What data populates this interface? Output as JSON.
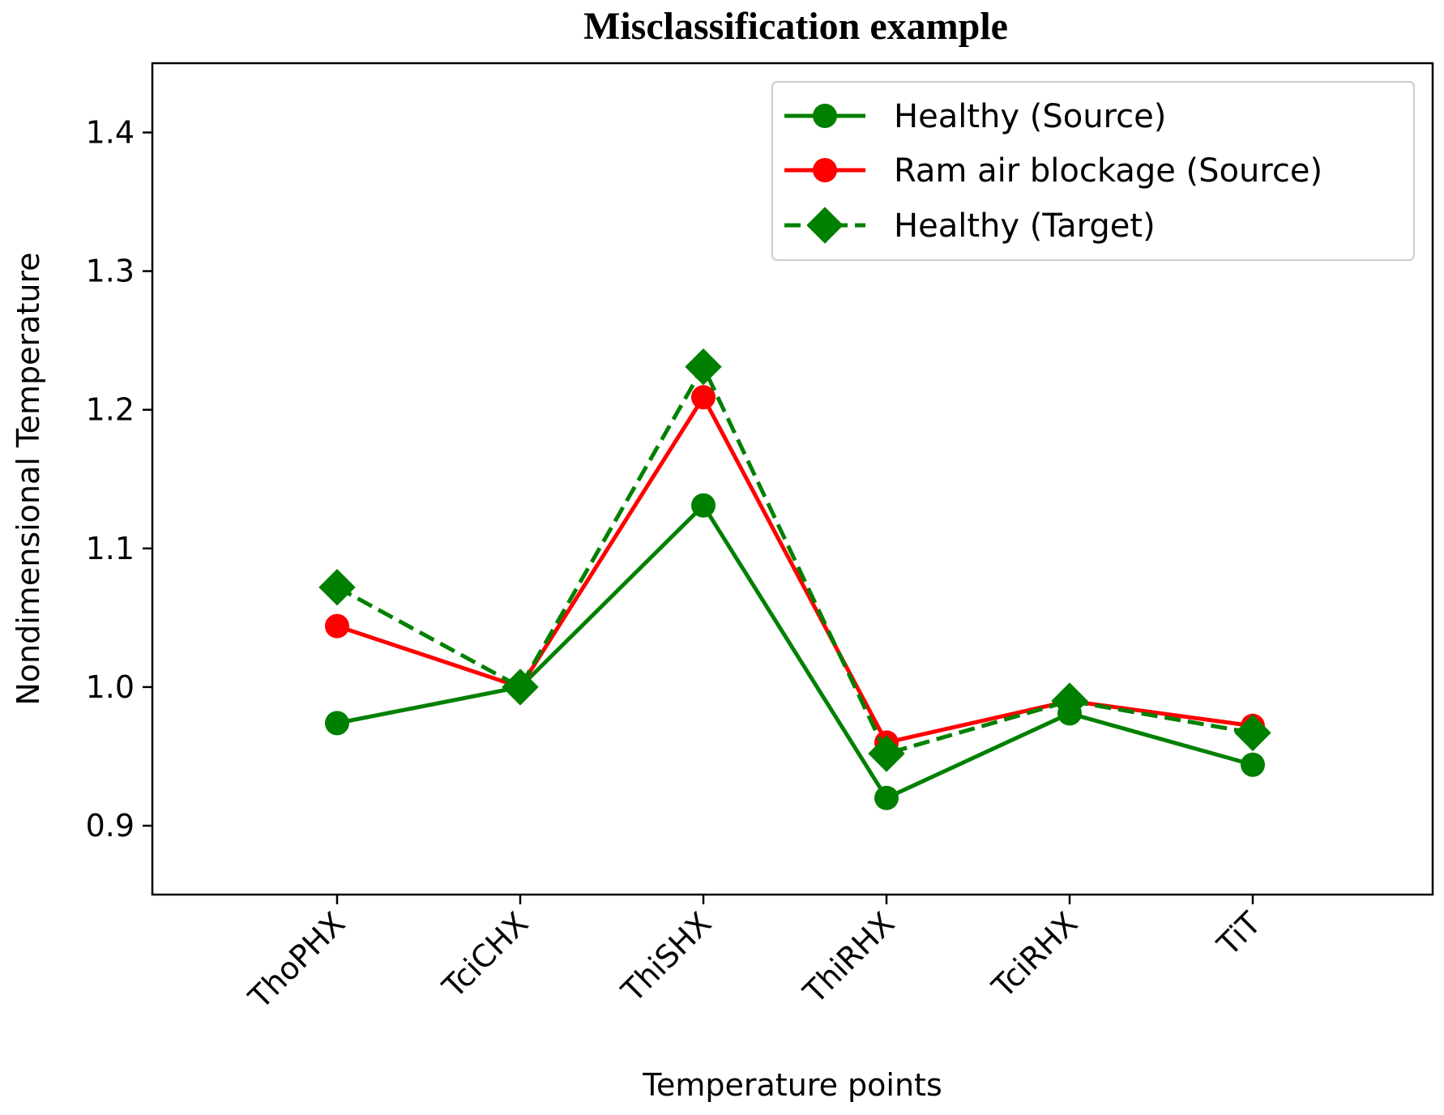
{
  "chart_data": {
    "type": "line",
    "title": "Misclassification example",
    "xlabel": "Temperature points",
    "ylabel": "Nondimensional Temperature",
    "categories": [
      "ThoPHX",
      "TciCHX",
      "ThiSHX",
      "ThiRHX",
      "TciRHX",
      "TiT"
    ],
    "ylim": [
      0.85,
      1.45
    ],
    "yticks": [
      0.9,
      1.0,
      1.1,
      1.2,
      1.3,
      1.4
    ],
    "ytick_labels": [
      "0.9",
      "1.0",
      "1.1",
      "1.2",
      "1.3",
      "1.4"
    ],
    "grid": false,
    "legend_position": "top-right",
    "series": [
      {
        "name": "Healthy (Source)",
        "color": "#008000",
        "marker": "circle",
        "linestyle": "solid",
        "values": [
          0.974,
          1.0,
          1.131,
          0.92,
          0.981,
          0.944
        ]
      },
      {
        "name": "Ram air blockage (Source)",
        "color": "#ff0000",
        "marker": "circle",
        "linestyle": "solid",
        "values": [
          1.044,
          1.0,
          1.209,
          0.96,
          0.99,
          0.972
        ]
      },
      {
        "name": "Healthy (Target)",
        "color": "#008000",
        "marker": "diamond",
        "linestyle": "dashed",
        "values": [
          1.072,
          1.0,
          1.231,
          0.952,
          0.99,
          0.967
        ]
      }
    ]
  }
}
